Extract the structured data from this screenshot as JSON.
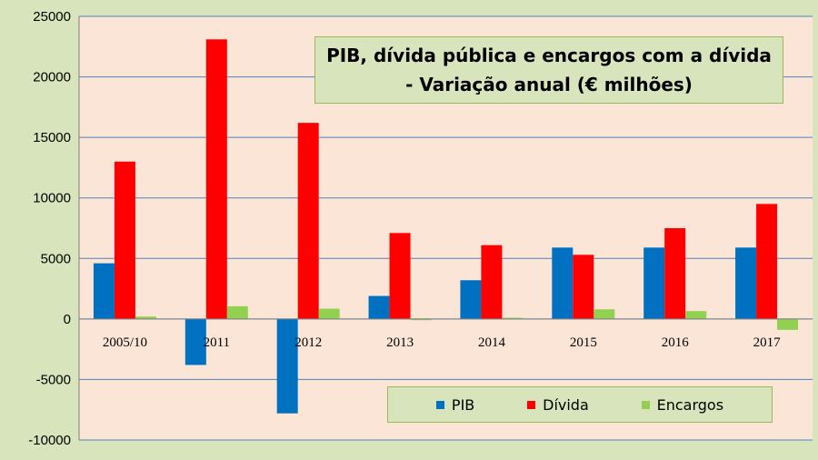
{
  "chart_data": {
    "type": "bar",
    "title_lines": [
      "PIB, dívida pública e encargos com a dívida",
      "- Variação anual (€ milhões)"
    ],
    "categories": [
      "2005/10",
      "2011",
      "2012",
      "2013",
      "2014",
      "2015",
      "2016",
      "2017"
    ],
    "series": [
      {
        "name": "PIB",
        "color": "#0070c0",
        "values": [
          4600,
          -3800,
          -7800,
          1900,
          3200,
          5900,
          5900,
          5900
        ]
      },
      {
        "name": "Dívida",
        "color": "#ff0000",
        "values": [
          13000,
          23100,
          16200,
          7100,
          6100,
          5300,
          7500,
          9500
        ]
      },
      {
        "name": "Encargos",
        "color": "#92d050",
        "values": [
          200,
          1050,
          850,
          -100,
          100,
          800,
          650,
          -900
        ]
      }
    ],
    "ylim": [
      -10000,
      25000
    ],
    "yticks": [
      "25000",
      "20000",
      "15000",
      "10000",
      "5000",
      "0",
      "-5000",
      "-10000"
    ],
    "grid": true,
    "legend_position": "bottom-right",
    "colors": {
      "plot_background": "#fbe5d6",
      "frame_background": "#d8e4bc",
      "gridline": "#4f81bd"
    }
  }
}
